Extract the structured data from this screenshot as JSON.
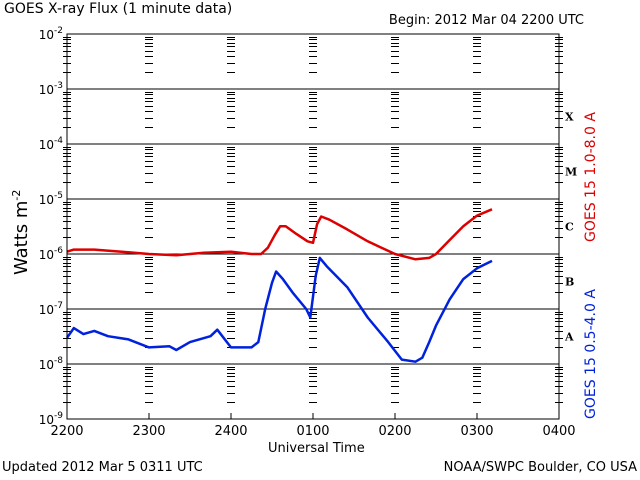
{
  "header": {
    "title": "GOES X-ray Flux (1 minute data)",
    "begin": "Begin: 2012 Mar 04 2200 UTC"
  },
  "footer": {
    "updated": "Updated 2012 Mar  5 0311 UTC",
    "credit": "NOAA/SWPC Boulder, CO USA"
  },
  "chart_data": {
    "type": "line",
    "title": "GOES X-ray Flux (1 minute data)",
    "xlabel": "Universal Time",
    "ylabel": "Watts m",
    "ylabel_exponent": "-2",
    "y_scale": "log",
    "ylim": [
      1e-09,
      0.01
    ],
    "xlim": [
      "2012-03-04 22:00",
      "2012-03-05 04:00"
    ],
    "x_ticks": [
      "2200",
      "2300",
      "2400",
      "0100",
      "0200",
      "0300",
      "0400"
    ],
    "y_ticks": [
      {
        "base": "10",
        "exp": "-2",
        "value": 0.01
      },
      {
        "base": "10",
        "exp": "-3",
        "value": 0.001
      },
      {
        "base": "10",
        "exp": "-4",
        "value": 0.0001
      },
      {
        "base": "10",
        "exp": "-5",
        "value": 1e-05
      },
      {
        "base": "10",
        "exp": "-6",
        "value": 1e-06
      },
      {
        "base": "10",
        "exp": "-7",
        "value": 1e-07
      },
      {
        "base": "10",
        "exp": "-8",
        "value": 1e-08
      },
      {
        "base": "10",
        "exp": "-9",
        "value": 1e-09
      }
    ],
    "flare_classes": [
      {
        "label": "X",
        "value": 0.000316
      },
      {
        "label": "M",
        "value": 3.16e-05
      },
      {
        "label": "C",
        "value": 3.16e-06
      },
      {
        "label": "B",
        "value": 3.16e-07
      },
      {
        "label": "A",
        "value": 3.16e-08
      }
    ],
    "grid": "horizontal lines at 1e-3 to 1e-8",
    "series": [
      {
        "name": "GOES 15 1.0-8.0 A",
        "color": "#dd0000",
        "points": [
          [
            "2012-03-04 22:00",
            1.1e-06
          ],
          [
            "2012-03-04 22:05",
            1.2e-06
          ],
          [
            "2012-03-04 22:20",
            1.2e-06
          ],
          [
            "2012-03-04 22:40",
            1.1e-06
          ],
          [
            "2012-03-04 23:00",
            1e-06
          ],
          [
            "2012-03-04 23:20",
            9.5e-07
          ],
          [
            "2012-03-04 23:40",
            1.05e-06
          ],
          [
            "2012-03-05 00:00",
            1.1e-06
          ],
          [
            "2012-03-05 00:15",
            1e-06
          ],
          [
            "2012-03-05 00:22",
            1e-06
          ],
          [
            "2012-03-05 00:27",
            1.3e-06
          ],
          [
            "2012-03-05 00:32",
            2.2e-06
          ],
          [
            "2012-03-05 00:36",
            3.2e-06
          ],
          [
            "2012-03-05 00:40",
            3.2e-06
          ],
          [
            "2012-03-05 00:48",
            2.3e-06
          ],
          [
            "2012-03-05 00:56",
            1.7e-06
          ],
          [
            "2012-03-05 01:00",
            1.6e-06
          ],
          [
            "2012-03-05 01:03",
            3.5e-06
          ],
          [
            "2012-03-05 01:06",
            4.8e-06
          ],
          [
            "2012-03-05 01:12",
            4.2e-06
          ],
          [
            "2012-03-05 01:25",
            2.8e-06
          ],
          [
            "2012-03-05 01:40",
            1.7e-06
          ],
          [
            "2012-03-05 02:00",
            1e-06
          ],
          [
            "2012-03-05 02:15",
            8e-07
          ],
          [
            "2012-03-05 02:25",
            8.5e-07
          ],
          [
            "2012-03-05 02:30",
            1e-06
          ],
          [
            "2012-03-05 02:40",
            1.8e-06
          ],
          [
            "2012-03-05 02:50",
            3.2e-06
          ],
          [
            "2012-03-05 03:00",
            5e-06
          ],
          [
            "2012-03-05 03:11",
            6.5e-06
          ]
        ]
      },
      {
        "name": "GOES 15 0.5-4.0 A",
        "color": "#0022dd",
        "points": [
          [
            "2012-03-04 22:00",
            3e-08
          ],
          [
            "2012-03-04 22:05",
            4.5e-08
          ],
          [
            "2012-03-04 22:12",
            3.5e-08
          ],
          [
            "2012-03-04 22:20",
            4e-08
          ],
          [
            "2012-03-04 22:30",
            3.2e-08
          ],
          [
            "2012-03-04 22:45",
            2.8e-08
          ],
          [
            "2012-03-04 23:00",
            2e-08
          ],
          [
            "2012-03-04 23:15",
            2.1e-08
          ],
          [
            "2012-03-04 23:20",
            1.8e-08
          ],
          [
            "2012-03-04 23:30",
            2.5e-08
          ],
          [
            "2012-03-04 23:45",
            3.2e-08
          ],
          [
            "2012-03-04 23:50",
            4.2e-08
          ],
          [
            "2012-03-05 00:00",
            2e-08
          ],
          [
            "2012-03-05 00:15",
            2e-08
          ],
          [
            "2012-03-05 00:20",
            2.5e-08
          ],
          [
            "2012-03-05 00:25",
            1e-07
          ],
          [
            "2012-03-05 00:30",
            3e-07
          ],
          [
            "2012-03-05 00:33",
            4.8e-07
          ],
          [
            "2012-03-05 00:38",
            3.5e-07
          ],
          [
            "2012-03-05 00:45",
            2e-07
          ],
          [
            "2012-03-05 00:55",
            1e-07
          ],
          [
            "2012-03-05 00:58",
            7e-08
          ],
          [
            "2012-03-05 01:02",
            4e-07
          ],
          [
            "2012-03-05 01:05",
            8.5e-07
          ],
          [
            "2012-03-05 01:10",
            6e-07
          ],
          [
            "2012-03-05 01:25",
            2.5e-07
          ],
          [
            "2012-03-05 01:40",
            7e-08
          ],
          [
            "2012-03-05 01:55",
            2.5e-08
          ],
          [
            "2012-03-05 02:05",
            1.2e-08
          ],
          [
            "2012-03-05 02:15",
            1.1e-08
          ],
          [
            "2012-03-05 02:20",
            1.3e-08
          ],
          [
            "2012-03-05 02:25",
            2.5e-08
          ],
          [
            "2012-03-05 02:30",
            5e-08
          ],
          [
            "2012-03-05 02:40",
            1.5e-07
          ],
          [
            "2012-03-05 02:50",
            3.5e-07
          ],
          [
            "2012-03-05 03:00",
            5.5e-07
          ],
          [
            "2012-03-05 03:11",
            7.5e-07
          ]
        ]
      }
    ]
  }
}
